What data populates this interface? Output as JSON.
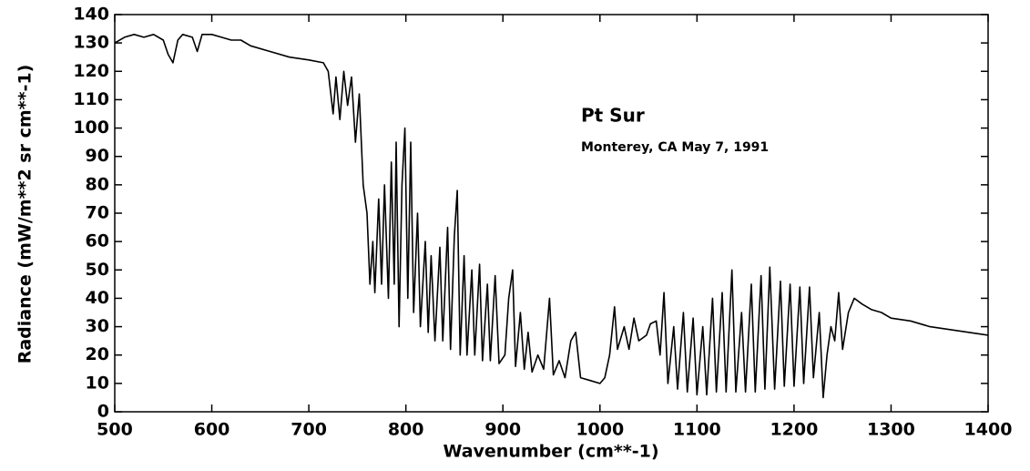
{
  "chart_data": {
    "type": "line",
    "xlabel": "Wavenumber (cm**-1)",
    "ylabel": "Radiance (mW/m**2 sr cm**-1)",
    "annotations": [
      "Pt Sur",
      "Monterey, CA May 7, 1991"
    ],
    "color": "#000000",
    "xlim": [
      500,
      1400
    ],
    "ylim": [
      0,
      140
    ],
    "xticks": [
      500,
      600,
      700,
      800,
      900,
      1000,
      1100,
      1200,
      1300,
      1400
    ],
    "yticks": [
      0,
      10,
      20,
      30,
      40,
      50,
      60,
      70,
      80,
      90,
      100,
      110,
      120,
      130,
      140
    ],
    "x": [
      500,
      510,
      520,
      530,
      540,
      550,
      555,
      560,
      565,
      570,
      580,
      585,
      590,
      600,
      610,
      620,
      630,
      640,
      660,
      680,
      700,
      715,
      720,
      725,
      728,
      732,
      736,
      740,
      744,
      748,
      752,
      756,
      760,
      763,
      766,
      768,
      772,
      775,
      778,
      782,
      785,
      788,
      790,
      793,
      796,
      799,
      802,
      805,
      808,
      812,
      815,
      820,
      823,
      826,
      830,
      835,
      838,
      843,
      846,
      850,
      853,
      856,
      860,
      863,
      868,
      871,
      876,
      879,
      884,
      887,
      892,
      896,
      902,
      906,
      910,
      913,
      918,
      922,
      926,
      930,
      936,
      942,
      948,
      952,
      958,
      964,
      970,
      975,
      980,
      990,
      1000,
      1005,
      1010,
      1015,
      1018,
      1025,
      1030,
      1035,
      1040,
      1048,
      1052,
      1058,
      1062,
      1066,
      1070,
      1076,
      1080,
      1086,
      1090,
      1096,
      1100,
      1106,
      1110,
      1116,
      1120,
      1126,
      1130,
      1136,
      1140,
      1146,
      1150,
      1156,
      1160,
      1166,
      1170,
      1175,
      1180,
      1186,
      1190,
      1196,
      1200,
      1206,
      1210,
      1216,
      1220,
      1226,
      1230,
      1234,
      1238,
      1242,
      1246,
      1250,
      1256,
      1262,
      1270,
      1280,
      1290,
      1300,
      1320,
      1340,
      1360,
      1380,
      1400
    ],
    "values": [
      130,
      132,
      133,
      132,
      133,
      131,
      126,
      123,
      131,
      133,
      132,
      127,
      133,
      133,
      132,
      131,
      131,
      129,
      127,
      125,
      124,
      123,
      120,
      105,
      118,
      103,
      120,
      108,
      118,
      95,
      112,
      80,
      70,
      45,
      60,
      42,
      75,
      45,
      80,
      40,
      88,
      45,
      95,
      30,
      80,
      100,
      40,
      95,
      35,
      70,
      30,
      60,
      28,
      55,
      25,
      58,
      25,
      65,
      22,
      62,
      78,
      20,
      55,
      20,
      50,
      20,
      52,
      18,
      45,
      18,
      48,
      17,
      20,
      40,
      50,
      16,
      35,
      15,
      28,
      14,
      20,
      15,
      40,
      13,
      18,
      12,
      25,
      28,
      12,
      11,
      10,
      12,
      20,
      37,
      22,
      30,
      22,
      33,
      25,
      27,
      31,
      32,
      20,
      42,
      10,
      30,
      8,
      35,
      7,
      33,
      6,
      30,
      6,
      40,
      7,
      42,
      7,
      50,
      7,
      35,
      7,
      45,
      7,
      48,
      8,
      51,
      8,
      46,
      9,
      45,
      9,
      44,
      10,
      44,
      12,
      35,
      5,
      20,
      30,
      25,
      42,
      22,
      35,
      40,
      38,
      36,
      35,
      33,
      32,
      30,
      29,
      28,
      27
    ]
  }
}
